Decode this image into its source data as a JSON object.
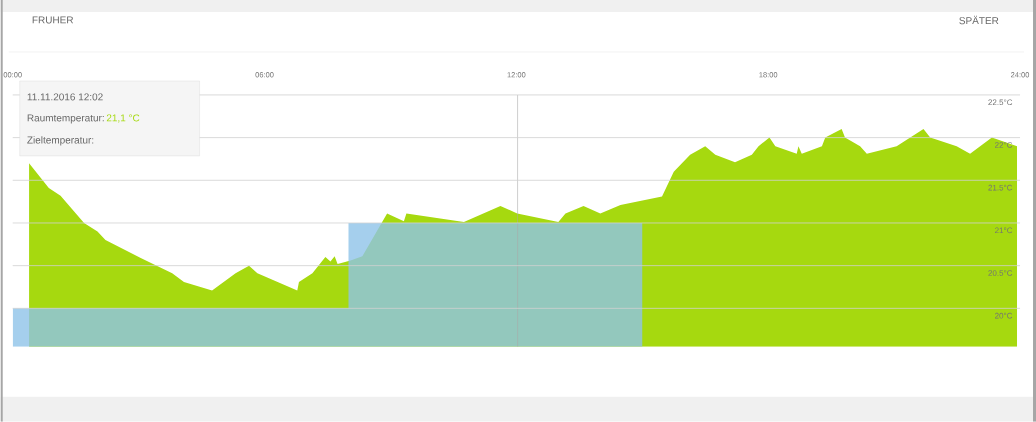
{
  "chart_data": {
    "type": "area",
    "x": [
      0.39,
      0.86,
      1.14,
      1.7,
      2.02,
      2.21,
      3.05,
      3.8,
      4.08,
      4.75,
      5.31,
      5.63,
      5.83,
      6.78,
      6.82,
      7.14,
      7.45,
      7.57,
      7.67,
      7.74,
      8.05,
      8.33,
      8.6,
      8.92,
      9.32,
      9.38,
      10.75,
      11.62,
      12.02,
      13.0,
      13.17,
      13.6,
      14.0,
      14.48,
      15.47,
      15.75,
      16.14,
      16.5,
      16.74,
      17.21,
      17.61,
      17.77,
      18.03,
      18.17,
      18.68,
      18.72,
      18.8,
      19.28,
      19.36,
      19.75,
      19.83,
      20.19,
      20.35,
      21.06,
      21.7,
      21.86,
      22.49,
      22.81,
      23.05,
      23.33,
      23.93
    ],
    "series": [
      {
        "type": "area",
        "color": "#a6d90f",
        "values": [
          21.7,
          21.41,
          21.32,
          21.0,
          20.9,
          20.8,
          20.59,
          20.41,
          20.31,
          20.21,
          20.41,
          20.5,
          20.41,
          20.21,
          20.31,
          20.41,
          20.6,
          20.55,
          20.61,
          20.52,
          20.56,
          20.61,
          20.84,
          21.11,
          21.02,
          21.11,
          21.01,
          21.2,
          21.11,
          21.01,
          21.11,
          21.2,
          21.11,
          21.21,
          21.31,
          21.6,
          21.8,
          21.9,
          21.8,
          21.71,
          21.8,
          21.9,
          22.0,
          21.9,
          21.81,
          21.9,
          21.81,
          21.9,
          22.0,
          22.1,
          22.0,
          21.9,
          21.81,
          21.9,
          22.1,
          22.0,
          21.9,
          21.81,
          21.9,
          22.0,
          21.9
        ]
      },
      {
        "type": "area",
        "color": "#8ec3e9",
        "x": [
          0,
          8,
          8,
          15,
          15
        ],
        "values": [
          20.0,
          20.0,
          21.0,
          21.0,
          22.0
        ]
      }
    ],
    "xlim": [
      0,
      24
    ],
    "ylim": [
      19.55,
      22.5
    ],
    "xticks": [
      {
        "value": 0,
        "label": "00:00"
      },
      {
        "value": 6,
        "label": "06:00"
      },
      {
        "value": 12,
        "label": "12:00"
      },
      {
        "value": 18,
        "label": "18:00"
      },
      {
        "value": 24,
        "label": "24:00"
      }
    ],
    "yticks": [
      {
        "value": 20,
        "label": "20°C"
      },
      {
        "value": 20.5,
        "label": "20.5°C"
      },
      {
        "value": 21,
        "label": "21°C"
      },
      {
        "value": 21.5,
        "label": "21.5°C"
      },
      {
        "value": 22,
        "label": "22°C"
      },
      {
        "value": 22.5,
        "label": "22.5°C"
      }
    ],
    "grid": "y",
    "ref_lines": [
      {
        "axis": "x",
        "value": 12.03,
        "color": "#aaaaaa"
      }
    ],
    "annotations": [
      "11.11.2016 12:02",
      "Raumtemperatur:",
      "21,1 °C",
      "Zieltemperatur:",
      "FRUHER",
      "SPÄTER"
    ]
  }
}
